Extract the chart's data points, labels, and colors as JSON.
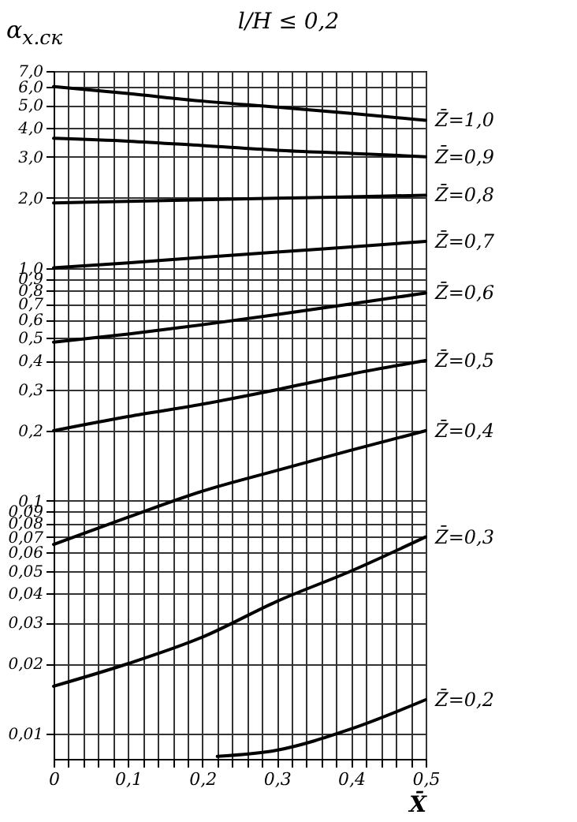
{
  "chart_data": {
    "type": "line",
    "title": "l/H ≤ 0,2",
    "ylabel": "α$_{х.ск}$",
    "xlabel": "X̄",
    "x": [
      0,
      0.1,
      0.2,
      0.3,
      0.4,
      0.5
    ],
    "series": [
      {
        "name": "Z̄=1,0",
        "color": "#000000",
        "values": [
          6.0,
          5.6,
          5.2,
          4.9,
          4.6,
          4.3
        ]
      },
      {
        "name": "Z̄=0,9",
        "color": "#000000",
        "values": [
          3.6,
          3.5,
          3.35,
          3.2,
          3.1,
          3.0
        ]
      },
      {
        "name": "Z̄=0,8",
        "color": "#000000",
        "values": [
          1.9,
          1.93,
          1.96,
          1.99,
          2.02,
          2.05
        ]
      },
      {
        "name": "Z̄=0,7",
        "color": "#000000",
        "values": [
          1.0,
          1.05,
          1.11,
          1.17,
          1.23,
          1.3
        ]
      },
      {
        "name": "Z̄=0,6",
        "color": "#000000",
        "values": [
          0.48,
          0.52,
          0.57,
          0.63,
          0.7,
          0.78
        ]
      },
      {
        "name": "Z̄=0,5",
        "color": "#000000",
        "values": [
          0.2,
          0.23,
          0.26,
          0.3,
          0.35,
          0.4
        ]
      },
      {
        "name": "Z̄=0,4",
        "color": "#000000",
        "values": [
          0.065,
          0.085,
          0.11,
          0.135,
          0.165,
          0.2
        ]
      },
      {
        "name": "Z̄=0,3",
        "color": "#000000",
        "values": [
          0.016,
          0.02,
          0.026,
          0.037,
          0.05,
          0.07
        ]
      },
      {
        "name": "Z̄=0,2",
        "color": "#000000",
        "x": [
          0.22,
          0.3,
          0.4,
          0.5
        ],
        "values": [
          0.008,
          0.0085,
          0.0105,
          0.014
        ]
      }
    ],
    "log": "y",
    "ylim": [
      0.0078,
      7
    ],
    "xlim": [
      0,
      0.5
    ],
    "xticks": [
      0,
      {
        "value": 0.02,
        "label": null
      },
      {
        "value": 0.04,
        "label": null
      },
      {
        "value": 0.06,
        "label": null
      },
      {
        "value": 0.08,
        "label": null
      },
      {
        "value": 0.1,
        "label": "0,1"
      },
      {
        "value": 0.12,
        "label": null
      },
      {
        "value": 0.14,
        "label": null
      },
      {
        "value": 0.16,
        "label": null
      },
      {
        "value": 0.18,
        "label": null
      },
      {
        "value": 0.2,
        "label": "0,2"
      },
      {
        "value": 0.22,
        "label": null
      },
      {
        "value": 0.24,
        "label": null
      },
      {
        "value": 0.26,
        "label": null
      },
      {
        "value": 0.28,
        "label": null
      },
      {
        "value": 0.3,
        "label": "0,3"
      },
      {
        "value": 0.32,
        "label": null
      },
      {
        "value": 0.34,
        "label": null
      },
      {
        "value": 0.36,
        "label": null
      },
      {
        "value": 0.38,
        "label": null
      },
      {
        "value": 0.4,
        "label": "0,4"
      },
      {
        "value": 0.42,
        "label": null
      },
      {
        "value": 0.44,
        "label": null
      },
      {
        "value": 0.46,
        "label": null
      },
      {
        "value": 0.48,
        "label": null
      },
      {
        "value": 0.5,
        "label": "0,5"
      }
    ],
    "yticks": [
      {
        "value": 0.01,
        "label": "0,01"
      },
      {
        "value": 0.02,
        "label": "0,02"
      },
      {
        "value": 0.03,
        "label": "0,03"
      },
      {
        "value": 0.04,
        "label": "0,04"
      },
      {
        "value": 0.05,
        "label": "0,05"
      },
      {
        "value": 0.06,
        "label": "0,06"
      },
      {
        "value": 0.07,
        "label": "0,07"
      },
      {
        "value": 0.08,
        "label": "0,08"
      },
      {
        "value": 0.09,
        "label": "0,09"
      },
      {
        "value": 0.1,
        "label": "0,1"
      },
      {
        "value": 0.2,
        "label": "0,2"
      },
      {
        "value": 0.3,
        "label": "0,3"
      },
      {
        "value": 0.4,
        "label": "0,4"
      },
      {
        "value": 0.5,
        "label": "0,5"
      },
      {
        "value": 0.6,
        "label": "0,6"
      },
      {
        "value": 0.7,
        "label": "0,7"
      },
      {
        "value": 0.8,
        "label": "0,8"
      },
      {
        "value": 0.9,
        "label": "0,9"
      },
      {
        "value": 1,
        "label": "1,0"
      },
      {
        "value": 2,
        "label": "2,0"
      },
      {
        "value": 3,
        "label": "3,0"
      },
      {
        "value": 4,
        "label": "4,0"
      },
      {
        "value": 5,
        "label": "5,0"
      },
      {
        "value": 6,
        "label": "6,0"
      },
      {
        "value": 7,
        "label": "7,0"
      }
    ],
    "grid": true,
    "legend": false,
    "marker": "none",
    "line_style": "solid"
  }
}
